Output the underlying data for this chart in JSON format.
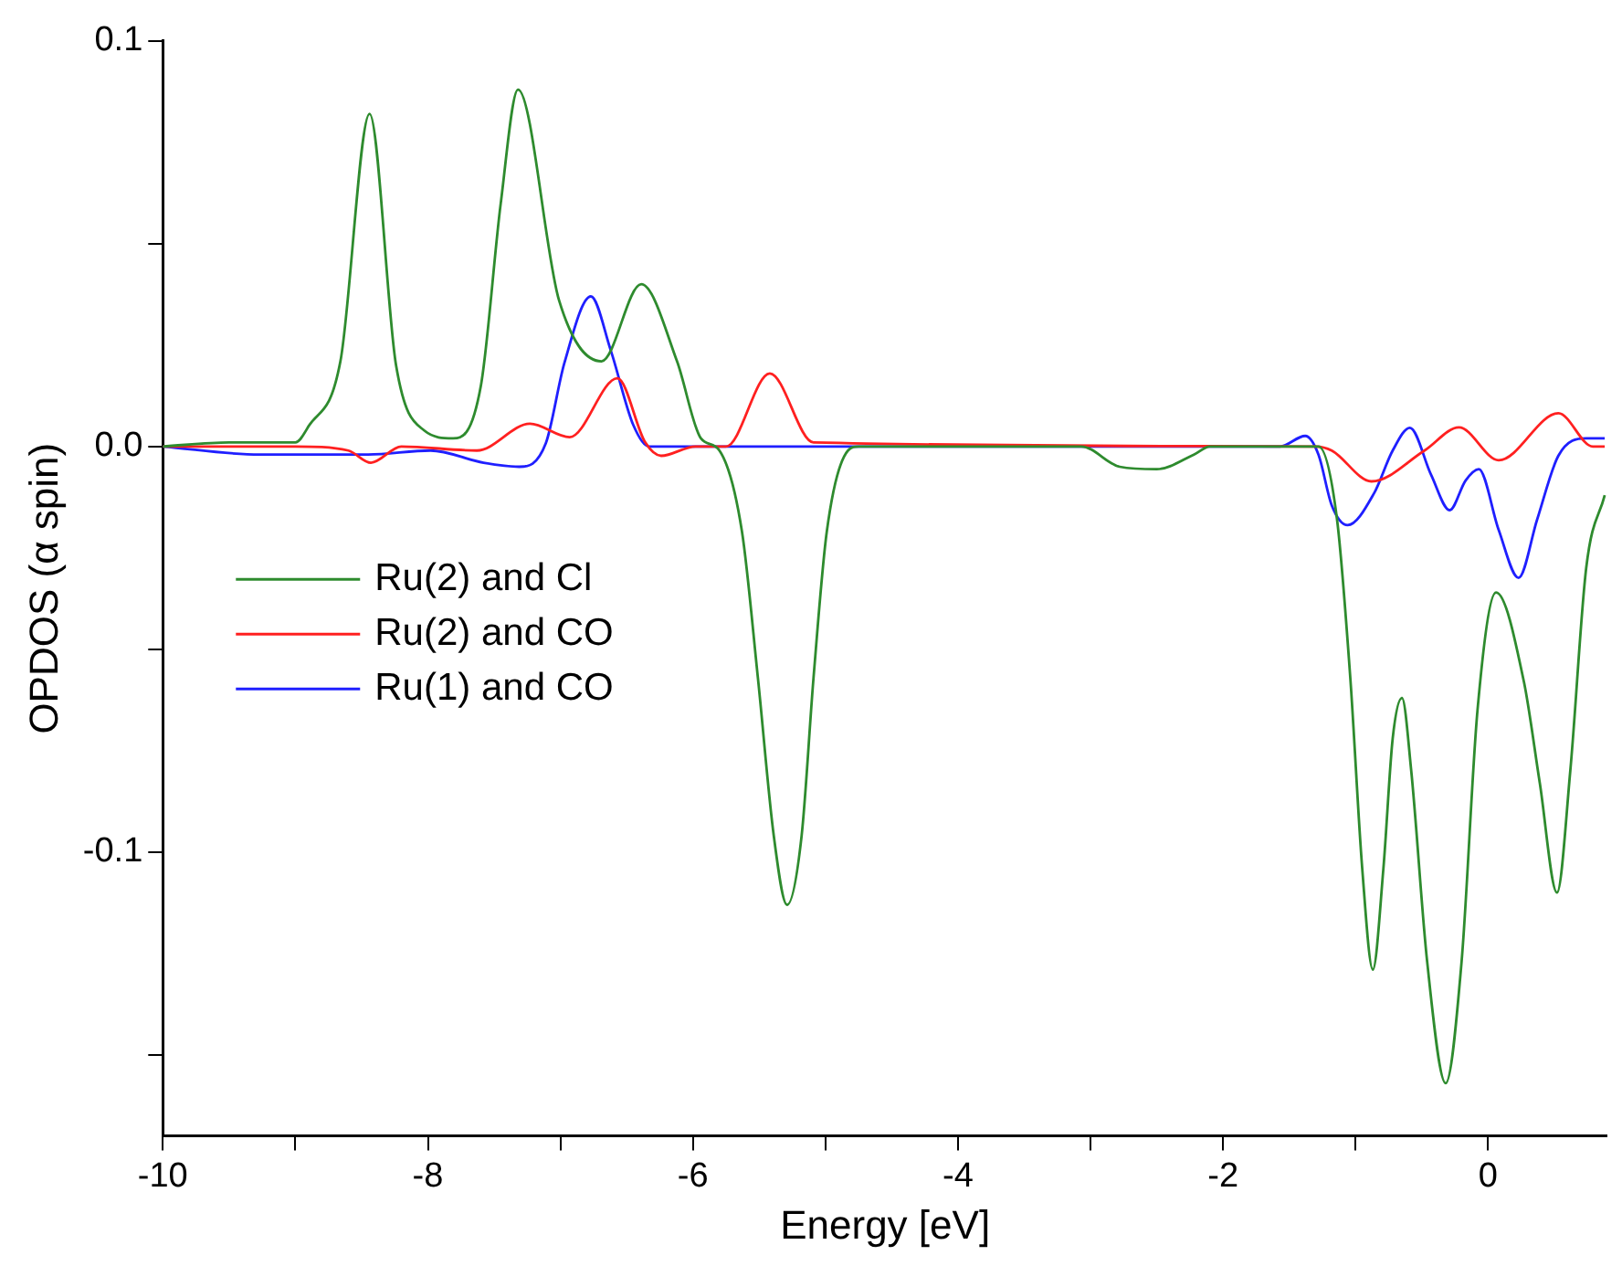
{
  "chart_data": {
    "type": "line",
    "xlabel": "Energy [eV]",
    "ylabel": "OPDOS (α spin)",
    "xlim": [
      -10,
      0.9
    ],
    "ylim": [
      -0.17,
      0.1
    ],
    "xticks": [
      -10,
      {
        "value": -9,
        "label": null
      },
      -8,
      {
        "value": -7,
        "label": null
      },
      -6,
      {
        "value": -5,
        "label": null
      },
      -4,
      {
        "value": -3,
        "label": null
      },
      -2,
      {
        "value": -1,
        "label": null
      },
      0
    ],
    "yticks": [
      {
        "value": -0.15,
        "label": null
      },
      -0.1,
      {
        "value": -0.05,
        "label": null
      },
      {
        "value": 0,
        "label": "0.0"
      },
      {
        "value": 0.05,
        "label": null
      },
      0.1
    ],
    "grid": false,
    "legend": "left",
    "marker": "none",
    "line_style": "solid",
    "series": [
      {
        "name": "Ru(2) and Cl",
        "color": "#2e8b2e",
        "x": [
          -10,
          -9.5,
          -9,
          -8.9,
          -8.66,
          -8.44,
          -8.24,
          -8.03,
          -7.81,
          -7.6,
          -7.45,
          -7.32,
          -7.01,
          -6.69,
          -6.39,
          -6.12,
          -5.94,
          -5.8,
          -5.63,
          -5.51,
          -5.39,
          -5.29,
          -5.18,
          -5.09,
          -4.99,
          -4.83,
          -4.75,
          -3.07,
          -2.78,
          -2.5,
          -2.22,
          -2.1,
          -1.28,
          -1.14,
          -1.04,
          -0.95,
          -0.87,
          -0.79,
          -0.72,
          -0.65,
          -0.58,
          -0.46,
          -0.32,
          -0.2,
          -0.08,
          0.06,
          0.27,
          0.39,
          0.52,
          0.62,
          0.74,
          0.88
        ],
        "values": [
          0,
          0.001,
          0.001,
          0.005,
          0.021,
          0.082,
          0.02,
          0.004,
          0.002,
          0.015,
          0.06,
          0.088,
          0.036,
          0.021,
          0.04,
          0.021,
          0.002,
          -0.001,
          -0.021,
          -0.057,
          -0.096,
          -0.113,
          -0.096,
          -0.057,
          -0.021,
          -0.001,
          0,
          0,
          -0.005,
          -0.0056,
          -0.002,
          0,
          0,
          -0.018,
          -0.057,
          -0.104,
          -0.129,
          -0.104,
          -0.072,
          -0.062,
          -0.08,
          -0.127,
          -0.157,
          -0.127,
          -0.065,
          -0.036,
          -0.058,
          -0.083,
          -0.11,
          -0.08,
          -0.03,
          -0.012
        ]
      },
      {
        "name": "Ru(2) and CO",
        "color": "#ff2020",
        "x": [
          -10,
          -9,
          -8.6,
          -8.43,
          -8.2,
          -7.63,
          -7.23,
          -6.93,
          -6.57,
          -6.36,
          -6.24,
          -5.98,
          -5.75,
          -5.42,
          -5.09,
          -1.3,
          -1.18,
          -0.88,
          -0.48,
          -0.22,
          0.08,
          0.53,
          0.79,
          0.88
        ],
        "values": [
          0,
          0,
          -0.001,
          -0.004,
          0,
          -0.001,
          0.0056,
          0.0023,
          0.0168,
          0.001,
          -0.0023,
          0,
          0,
          0.018,
          0.001,
          0,
          -0.001,
          -0.0086,
          -0.001,
          0.0047,
          -0.0034,
          0.0082,
          0,
          0
        ]
      },
      {
        "name": "Ru(1) and CO",
        "color": "#1f1fff",
        "x": [
          -10,
          -9.27,
          -8.45,
          -7.98,
          -7.58,
          -7.31,
          -7.11,
          -6.97,
          -6.77,
          -6.62,
          -6.45,
          -6.33,
          -1.57,
          -1.38,
          -1.28,
          -1.18,
          -1.06,
          -0.86,
          -0.72,
          -0.59,
          -0.43,
          -0.29,
          -0.17,
          -0.07,
          0.08,
          0.23,
          0.37,
          0.53,
          0.74,
          0.88
        ],
        "values": [
          0,
          -0.002,
          -0.002,
          -0.001,
          -0.004,
          -0.005,
          0.0008,
          0.0206,
          0.037,
          0.0237,
          0.0053,
          0,
          0,
          0.0026,
          -0.002,
          -0.0145,
          -0.0194,
          -0.0115,
          -0.001,
          0.0046,
          -0.007,
          -0.0157,
          -0.0084,
          -0.0056,
          -0.0206,
          -0.0324,
          -0.018,
          -0.0023,
          0.002,
          0.002
        ]
      }
    ]
  }
}
